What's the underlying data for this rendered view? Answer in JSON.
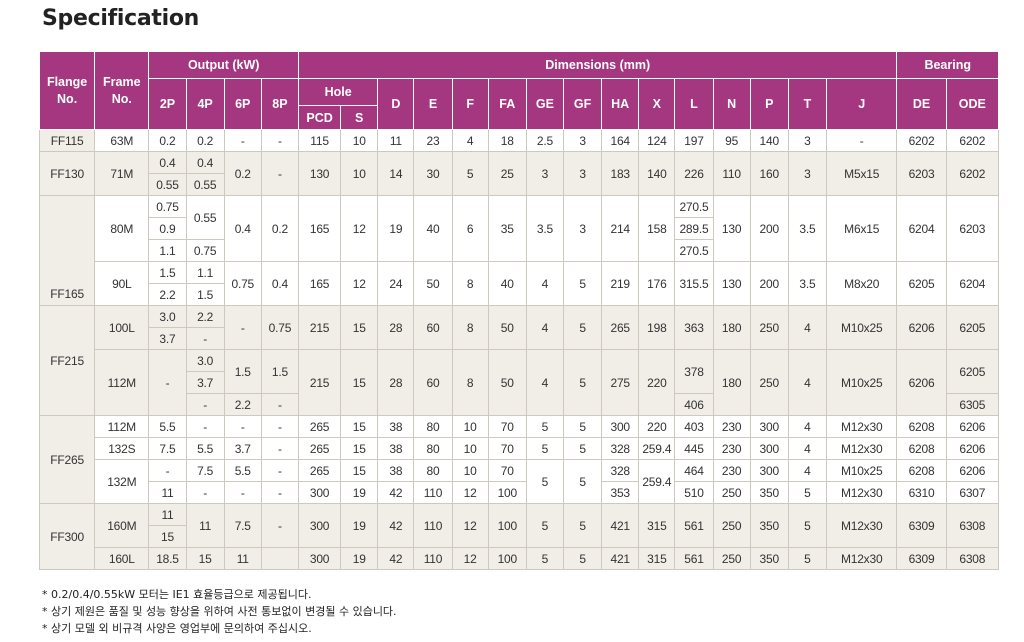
{
  "title": "Specification",
  "headers": {
    "flange": "Flange\nNo.",
    "frame": "Frame\nNo.",
    "output": "Output (kW)",
    "dimensions": "Dimensions (mm)",
    "bearing": "Bearing",
    "p2": "2P",
    "p4": "4P",
    "p6": "6P",
    "p8": "8P",
    "hole": "Hole",
    "pcd": "PCD",
    "s": "S",
    "d": "D",
    "e": "E",
    "f": "F",
    "fa": "FA",
    "ge": "GE",
    "gf": "GF",
    "ha": "HA",
    "x": "X",
    "l": "L",
    "n": "N",
    "p": "P",
    "t": "T",
    "j": "J",
    "de": "DE",
    "ode": "ODE"
  },
  "rows": [
    [
      {
        "t": "FF115",
        "rs": 1,
        "c": "lbl"
      },
      {
        "t": "63M",
        "rs": 1
      },
      {
        "t": "0.2",
        "rs": 1
      },
      {
        "t": "0.2",
        "rs": 1
      },
      {
        "t": "-",
        "rs": 1
      },
      {
        "t": "-",
        "rs": 1
      },
      {
        "t": "115",
        "rs": 1
      },
      {
        "t": "10",
        "rs": 1
      },
      {
        "t": "11",
        "rs": 1
      },
      {
        "t": "23",
        "rs": 1
      },
      {
        "t": "4",
        "rs": 1
      },
      {
        "t": "18",
        "rs": 1
      },
      {
        "t": "2.5",
        "rs": 1
      },
      {
        "t": "3",
        "rs": 1
      },
      {
        "t": "164",
        "rs": 1
      },
      {
        "t": "124",
        "rs": 1
      },
      {
        "t": "197",
        "rs": 1
      },
      {
        "t": "95",
        "rs": 1
      },
      {
        "t": "140",
        "rs": 1
      },
      {
        "t": "3",
        "rs": 1
      },
      {
        "t": "-",
        "rs": 1
      },
      {
        "t": "6202",
        "rs": 1
      },
      {
        "t": "6202",
        "rs": 1
      }
    ],
    [
      {
        "t": "FF130",
        "rs": 2,
        "c": "lbl"
      },
      {
        "t": "71M",
        "rs": 2,
        "c": "shade"
      },
      {
        "t": "0.4",
        "rs": 1,
        "c": "shade"
      },
      {
        "t": "0.4",
        "rs": 1,
        "c": "shade"
      },
      {
        "t": "0.2",
        "rs": 2,
        "c": "shade"
      },
      {
        "t": "-",
        "rs": 2,
        "c": "shade"
      },
      {
        "t": "130",
        "rs": 2,
        "c": "shade"
      },
      {
        "t": "10",
        "rs": 2,
        "c": "shade"
      },
      {
        "t": "14",
        "rs": 2,
        "c": "shade"
      },
      {
        "t": "30",
        "rs": 2,
        "c": "shade"
      },
      {
        "t": "5",
        "rs": 2,
        "c": "shade"
      },
      {
        "t": "25",
        "rs": 2,
        "c": "shade"
      },
      {
        "t": "3",
        "rs": 2,
        "c": "shade"
      },
      {
        "t": "3",
        "rs": 2,
        "c": "shade"
      },
      {
        "t": "183",
        "rs": 2,
        "c": "shade"
      },
      {
        "t": "140",
        "rs": 2,
        "c": "shade"
      },
      {
        "t": "226",
        "rs": 2,
        "c": "shade"
      },
      {
        "t": "110",
        "rs": 2,
        "c": "shade"
      },
      {
        "t": "160",
        "rs": 2,
        "c": "shade"
      },
      {
        "t": "3",
        "rs": 2,
        "c": "shade"
      },
      {
        "t": "M5x15",
        "rs": 2,
        "c": "shade"
      },
      {
        "t": "6203",
        "rs": 2,
        "c": "shade"
      },
      {
        "t": "6202",
        "rs": 2,
        "c": "shade"
      }
    ],
    [
      {
        "t": "0.55",
        "rs": 1,
        "c": "shade"
      },
      {
        "t": "0.55",
        "rs": 1,
        "c": "shade"
      }
    ],
    [
      {
        "t": "FF165",
        "rs": 5,
        "c": "lbl",
        "va": "bottom"
      },
      {
        "t": "80M",
        "rs": 3
      },
      {
        "t": "0.75",
        "rs": 1
      },
      {
        "t": "0.55",
        "rs": 2
      },
      {
        "t": "0.4",
        "rs": 3
      },
      {
        "t": "0.2",
        "rs": 3
      },
      {
        "t": "165",
        "rs": 3
      },
      {
        "t": "12",
        "rs": 3
      },
      {
        "t": "19",
        "rs": 3
      },
      {
        "t": "40",
        "rs": 3
      },
      {
        "t": "6",
        "rs": 3
      },
      {
        "t": "35",
        "rs": 3
      },
      {
        "t": "3.5",
        "rs": 3
      },
      {
        "t": "3",
        "rs": 3
      },
      {
        "t": "214",
        "rs": 3
      },
      {
        "t": "158",
        "rs": 3
      },
      {
        "t": "270.5",
        "rs": 1
      },
      {
        "t": "130",
        "rs": 3
      },
      {
        "t": "200",
        "rs": 3
      },
      {
        "t": "3.5",
        "rs": 3
      },
      {
        "t": "M6x15",
        "rs": 3
      },
      {
        "t": "6204",
        "rs": 3
      },
      {
        "t": "6203",
        "rs": 3
      }
    ],
    [
      {
        "t": "0.9",
        "rs": 1
      },
      {
        "t": "289.5",
        "rs": 1
      }
    ],
    [
      {
        "t": "1.1",
        "rs": 1
      },
      {
        "t": "0.75",
        "rs": 1
      },
      {
        "t": "270.5",
        "rs": 1
      }
    ],
    [
      {
        "t": "90L",
        "rs": 2
      },
      {
        "t": "1.5",
        "rs": 1
      },
      {
        "t": "1.1",
        "rs": 1
      },
      {
        "t": "0.75",
        "rs": 2
      },
      {
        "t": "0.4",
        "rs": 2
      },
      {
        "t": "165",
        "rs": 2
      },
      {
        "t": "12",
        "rs": 2
      },
      {
        "t": "24",
        "rs": 2
      },
      {
        "t": "50",
        "rs": 2
      },
      {
        "t": "8",
        "rs": 2
      },
      {
        "t": "40",
        "rs": 2
      },
      {
        "t": "4",
        "rs": 2
      },
      {
        "t": "5",
        "rs": 2
      },
      {
        "t": "219",
        "rs": 2
      },
      {
        "t": "176",
        "rs": 2
      },
      {
        "t": "315.5",
        "rs": 2
      },
      {
        "t": "130",
        "rs": 2
      },
      {
        "t": "200",
        "rs": 2
      },
      {
        "t": "3.5",
        "rs": 2
      },
      {
        "t": "M8x20",
        "rs": 2
      },
      {
        "t": "6205",
        "rs": 2
      },
      {
        "t": "6204",
        "rs": 2
      }
    ],
    [
      {
        "t": "2.2",
        "rs": 1
      },
      {
        "t": "1.5",
        "rs": 1
      }
    ],
    [
      {
        "t": "FF215",
        "rs": 5,
        "c": "lbl"
      },
      {
        "t": "100L",
        "rs": 2,
        "c": "shade"
      },
      {
        "t": "3.0",
        "rs": 1,
        "c": "shade"
      },
      {
        "t": "2.2",
        "rs": 1,
        "c": "shade"
      },
      {
        "t": "-",
        "rs": 2,
        "c": "shade"
      },
      {
        "t": "0.75",
        "rs": 2,
        "c": "shade"
      },
      {
        "t": "215",
        "rs": 2,
        "c": "shade"
      },
      {
        "t": "15",
        "rs": 2,
        "c": "shade"
      },
      {
        "t": "28",
        "rs": 2,
        "c": "shade"
      },
      {
        "t": "60",
        "rs": 2,
        "c": "shade"
      },
      {
        "t": "8",
        "rs": 2,
        "c": "shade"
      },
      {
        "t": "50",
        "rs": 2,
        "c": "shade"
      },
      {
        "t": "4",
        "rs": 2,
        "c": "shade"
      },
      {
        "t": "5",
        "rs": 2,
        "c": "shade"
      },
      {
        "t": "265",
        "rs": 2,
        "c": "shade"
      },
      {
        "t": "198",
        "rs": 2,
        "c": "shade"
      },
      {
        "t": "363",
        "rs": 2,
        "c": "shade"
      },
      {
        "t": "180",
        "rs": 2,
        "c": "shade"
      },
      {
        "t": "250",
        "rs": 2,
        "c": "shade"
      },
      {
        "t": "4",
        "rs": 2,
        "c": "shade"
      },
      {
        "t": "M10x25",
        "rs": 2,
        "c": "shade"
      },
      {
        "t": "6206",
        "rs": 2,
        "c": "shade"
      },
      {
        "t": "6205",
        "rs": 2,
        "c": "shade"
      }
    ],
    [
      {
        "t": "3.7",
        "rs": 1,
        "c": "shade"
      },
      {
        "t": "-",
        "rs": 1,
        "c": "shade"
      }
    ],
    [
      {
        "t": "112M",
        "rs": 3,
        "c": "shade"
      },
      {
        "t": "-",
        "rs": 3,
        "c": "shade"
      },
      {
        "t": "3.0",
        "rs": 1,
        "c": "shade"
      },
      {
        "t": "1.5",
        "rs": 2,
        "c": "shade"
      },
      {
        "t": "1.5",
        "rs": 2,
        "c": "shade"
      },
      {
        "t": "215",
        "rs": 3,
        "c": "shade"
      },
      {
        "t": "15",
        "rs": 3,
        "c": "shade"
      },
      {
        "t": "28",
        "rs": 3,
        "c": "shade"
      },
      {
        "t": "60",
        "rs": 3,
        "c": "shade"
      },
      {
        "t": "8",
        "rs": 3,
        "c": "shade"
      },
      {
        "t": "50",
        "rs": 3,
        "c": "shade"
      },
      {
        "t": "4",
        "rs": 3,
        "c": "shade"
      },
      {
        "t": "5",
        "rs": 3,
        "c": "shade"
      },
      {
        "t": "275",
        "rs": 3,
        "c": "shade"
      },
      {
        "t": "220",
        "rs": 3,
        "c": "shade"
      },
      {
        "t": "378",
        "rs": 2,
        "c": "shade"
      },
      {
        "t": "180",
        "rs": 3,
        "c": "shade"
      },
      {
        "t": "250",
        "rs": 3,
        "c": "shade"
      },
      {
        "t": "4",
        "rs": 3,
        "c": "shade"
      },
      {
        "t": "M10x25",
        "rs": 3,
        "c": "shade"
      },
      {
        "t": "6206",
        "rs": 3,
        "c": "shade"
      },
      {
        "t": "6205",
        "rs": 2,
        "c": "shade"
      }
    ],
    [
      {
        "t": "3.7",
        "rs": 1,
        "c": "shade"
      }
    ],
    [
      {
        "t": "-",
        "rs": 1,
        "c": "shade"
      },
      {
        "t": "2.2",
        "rs": 1,
        "c": "shade"
      },
      {
        "t": "-",
        "rs": 1,
        "c": "shade"
      },
      {
        "t": "406",
        "rs": 1,
        "c": "shade"
      },
      {
        "t": "6305",
        "rs": 1,
        "c": "shade"
      }
    ],
    [
      {
        "t": "FF265",
        "rs": 4,
        "c": "lbl"
      },
      {
        "t": "112M",
        "rs": 1
      },
      {
        "t": "5.5",
        "rs": 1
      },
      {
        "t": "-",
        "rs": 1
      },
      {
        "t": "-",
        "rs": 1
      },
      {
        "t": "-",
        "rs": 1
      },
      {
        "t": "265",
        "rs": 1
      },
      {
        "t": "15",
        "rs": 1
      },
      {
        "t": "38",
        "rs": 1
      },
      {
        "t": "80",
        "rs": 1
      },
      {
        "t": "10",
        "rs": 1
      },
      {
        "t": "70",
        "rs": 1
      },
      {
        "t": "5",
        "rs": 1
      },
      {
        "t": "5",
        "rs": 1
      },
      {
        "t": "300",
        "rs": 1
      },
      {
        "t": "220",
        "rs": 1
      },
      {
        "t": "403",
        "rs": 1
      },
      {
        "t": "230",
        "rs": 1
      },
      {
        "t": "300",
        "rs": 1
      },
      {
        "t": "4",
        "rs": 1
      },
      {
        "t": "M12x30",
        "rs": 1
      },
      {
        "t": "6208",
        "rs": 1
      },
      {
        "t": "6206",
        "rs": 1
      }
    ],
    [
      {
        "t": "132S",
        "rs": 1
      },
      {
        "t": "7.5",
        "rs": 1
      },
      {
        "t": "5.5",
        "rs": 1
      },
      {
        "t": "3.7",
        "rs": 1
      },
      {
        "t": "-",
        "rs": 1
      },
      {
        "t": "265",
        "rs": 1
      },
      {
        "t": "15",
        "rs": 1
      },
      {
        "t": "38",
        "rs": 1
      },
      {
        "t": "80",
        "rs": 1
      },
      {
        "t": "10",
        "rs": 1
      },
      {
        "t": "70",
        "rs": 1
      },
      {
        "t": "5",
        "rs": 1
      },
      {
        "t": "5",
        "rs": 1
      },
      {
        "t": "328",
        "rs": 1
      },
      {
        "t": "259.4",
        "rs": 1
      },
      {
        "t": "445",
        "rs": 1
      },
      {
        "t": "230",
        "rs": 1
      },
      {
        "t": "300",
        "rs": 1
      },
      {
        "t": "4",
        "rs": 1
      },
      {
        "t": "M12x30",
        "rs": 1
      },
      {
        "t": "6208",
        "rs": 1
      },
      {
        "t": "6206",
        "rs": 1
      }
    ],
    [
      {
        "t": "132M",
        "rs": 2
      },
      {
        "t": "-",
        "rs": 1
      },
      {
        "t": "7.5",
        "rs": 1
      },
      {
        "t": "5.5",
        "rs": 1
      },
      {
        "t": "-",
        "rs": 1
      },
      {
        "t": "265",
        "rs": 1
      },
      {
        "t": "15",
        "rs": 1
      },
      {
        "t": "38",
        "rs": 1
      },
      {
        "t": "80",
        "rs": 1
      },
      {
        "t": "10",
        "rs": 1
      },
      {
        "t": "70",
        "rs": 1
      },
      {
        "t": "5",
        "rs": 2
      },
      {
        "t": "5",
        "rs": 2
      },
      {
        "t": "328",
        "rs": 1
      },
      {
        "t": "259.4",
        "rs": 2
      },
      {
        "t": "464",
        "rs": 1
      },
      {
        "t": "230",
        "rs": 1
      },
      {
        "t": "300",
        "rs": 1
      },
      {
        "t": "4",
        "rs": 1
      },
      {
        "t": "M10x25",
        "rs": 1
      },
      {
        "t": "6208",
        "rs": 1
      },
      {
        "t": "6206",
        "rs": 1
      }
    ],
    [
      {
        "t": "11",
        "rs": 1
      },
      {
        "t": "-",
        "rs": 1
      },
      {
        "t": "-",
        "rs": 1
      },
      {
        "t": "-",
        "rs": 1
      },
      {
        "t": "300",
        "rs": 1
      },
      {
        "t": "19",
        "rs": 1
      },
      {
        "t": "42",
        "rs": 1
      },
      {
        "t": "110",
        "rs": 1
      },
      {
        "t": "12",
        "rs": 1
      },
      {
        "t": "100",
        "rs": 1
      },
      {
        "t": "353",
        "rs": 1
      },
      {
        "t": "510",
        "rs": 1
      },
      {
        "t": "250",
        "rs": 1
      },
      {
        "t": "350",
        "rs": 1
      },
      {
        "t": "5",
        "rs": 1
      },
      {
        "t": "M12x30",
        "rs": 1
      },
      {
        "t": "6310",
        "rs": 1
      },
      {
        "t": "6307",
        "rs": 1
      }
    ],
    [
      {
        "t": "FF300",
        "rs": 3,
        "c": "lbl"
      },
      {
        "t": "160M",
        "rs": 2,
        "c": "shade"
      },
      {
        "t": "11",
        "rs": 1,
        "c": "shade"
      },
      {
        "t": "11",
        "rs": 2,
        "c": "shade"
      },
      {
        "t": "7.5",
        "rs": 2,
        "c": "shade"
      },
      {
        "t": "-",
        "rs": 2,
        "c": "shade"
      },
      {
        "t": "300",
        "rs": 2,
        "c": "shade"
      },
      {
        "t": "19",
        "rs": 2,
        "c": "shade"
      },
      {
        "t": "42",
        "rs": 2,
        "c": "shade"
      },
      {
        "t": "110",
        "rs": 2,
        "c": "shade"
      },
      {
        "t": "12",
        "rs": 2,
        "c": "shade"
      },
      {
        "t": "100",
        "rs": 2,
        "c": "shade"
      },
      {
        "t": "5",
        "rs": 2,
        "c": "shade"
      },
      {
        "t": "5",
        "rs": 2,
        "c": "shade"
      },
      {
        "t": "421",
        "rs": 2,
        "c": "shade"
      },
      {
        "t": "315",
        "rs": 2,
        "c": "shade"
      },
      {
        "t": "561",
        "rs": 2,
        "c": "shade"
      },
      {
        "t": "250",
        "rs": 2,
        "c": "shade"
      },
      {
        "t": "350",
        "rs": 2,
        "c": "shade"
      },
      {
        "t": "5",
        "rs": 2,
        "c": "shade"
      },
      {
        "t": "M12x30",
        "rs": 2,
        "c": "shade"
      },
      {
        "t": "6309",
        "rs": 2,
        "c": "shade"
      },
      {
        "t": "6308",
        "rs": 2,
        "c": "shade"
      }
    ],
    [
      {
        "t": "15",
        "rs": 1,
        "c": "shade"
      }
    ],
    [
      {
        "t": "160L",
        "rs": 1,
        "c": "shade"
      },
      {
        "t": "18.5",
        "rs": 1,
        "c": "shade"
      },
      {
        "t": "15",
        "rs": 1,
        "c": "shade"
      },
      {
        "t": "11",
        "rs": 1,
        "c": "shade"
      },
      {
        "t": "",
        "rs": 1,
        "c": "shade"
      },
      {
        "t": "300",
        "rs": 1,
        "c": "shade"
      },
      {
        "t": "19",
        "rs": 1,
        "c": "shade"
      },
      {
        "t": "42",
        "rs": 1,
        "c": "shade"
      },
      {
        "t": "110",
        "rs": 1,
        "c": "shade"
      },
      {
        "t": "12",
        "rs": 1,
        "c": "shade"
      },
      {
        "t": "100",
        "rs": 1,
        "c": "shade"
      },
      {
        "t": "5",
        "rs": 1,
        "c": "shade"
      },
      {
        "t": "5",
        "rs": 1,
        "c": "shade"
      },
      {
        "t": "421",
        "rs": 1,
        "c": "shade"
      },
      {
        "t": "315",
        "rs": 1,
        "c": "shade"
      },
      {
        "t": "561",
        "rs": 1,
        "c": "shade"
      },
      {
        "t": "250",
        "rs": 1,
        "c": "shade"
      },
      {
        "t": "350",
        "rs": 1,
        "c": "shade"
      },
      {
        "t": "5",
        "rs": 1,
        "c": "shade"
      },
      {
        "t": "M12x30",
        "rs": 1,
        "c": "shade"
      },
      {
        "t": "6309",
        "rs": 1,
        "c": "shade"
      },
      {
        "t": "6308",
        "rs": 1,
        "c": "shade"
      }
    ]
  ],
  "notes": [
    "* 0.2/0.4/0.55kW 모터는 IE1 효율등급으로 제공됩니다.",
    "* 상기 제원은 품질 및 성능 향상을 위하여 사전 통보없이 변경될 수 있습니다.",
    "* 상기 모델 외 비규격 사양은 영업부에 문의하여 주십시오."
  ],
  "colors": {
    "header": "#a4377f",
    "shade": "#f1ede7",
    "border": "#cfc8bf"
  }
}
